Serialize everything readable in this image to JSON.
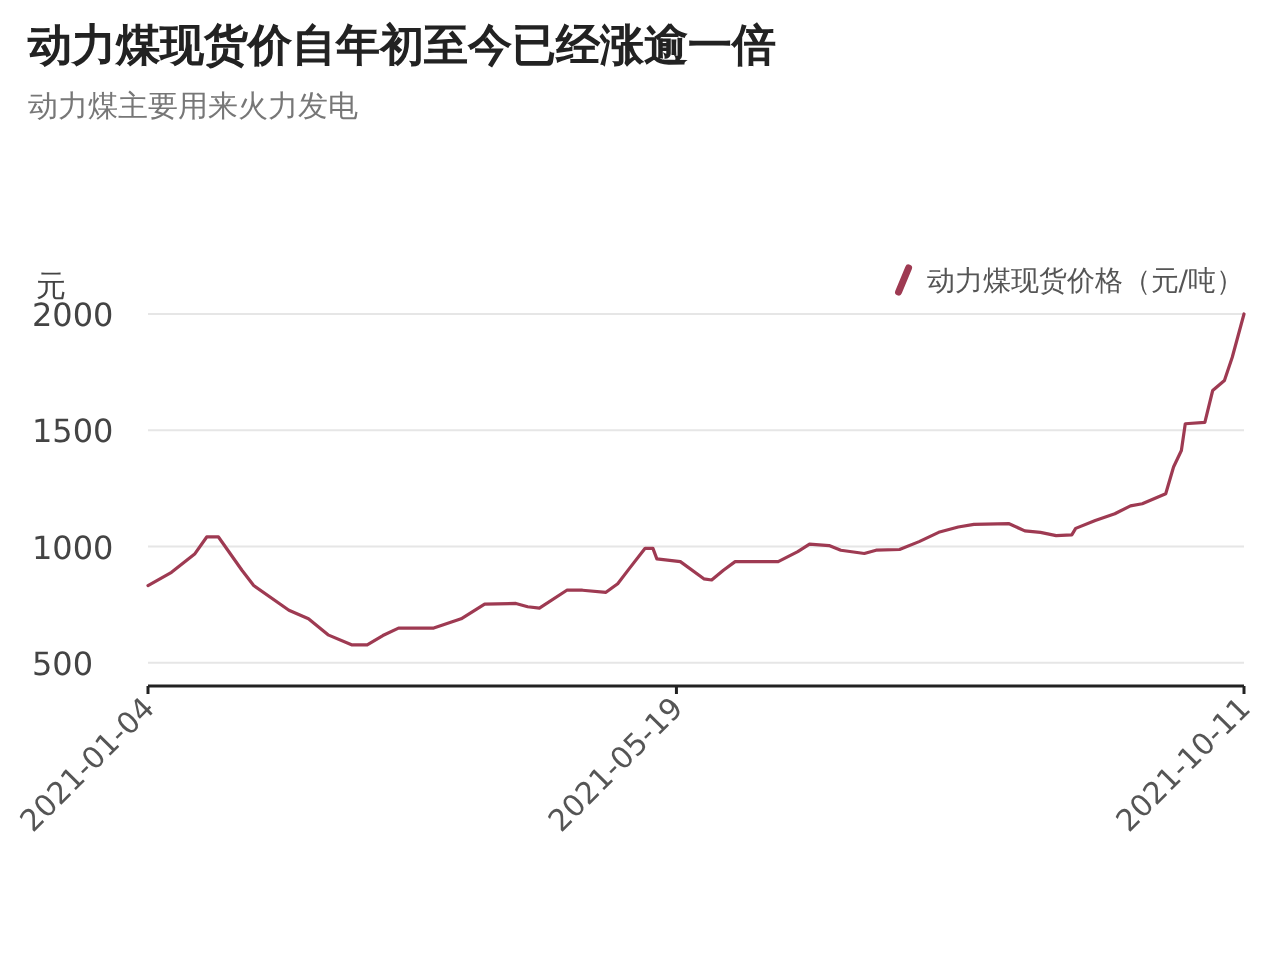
{
  "chart_data": {
    "type": "line",
    "title": "动力煤现货价自年初至今已经涨逾一倍",
    "subtitle": "动力煤主要用来火力发电",
    "ylabel": "元",
    "x": [
      "2021-01-04",
      "2021-01-10",
      "2021-01-16",
      "2021-01-19",
      "2021-01-22",
      "2021-01-28",
      "2021-01-31",
      "2021-02-09",
      "2021-02-14",
      "2021-02-19",
      "2021-02-25",
      "2021-03-01",
      "2021-03-05",
      "2021-03-09",
      "2021-03-18",
      "2021-03-25",
      "2021-03-31",
      "2021-04-08",
      "2021-04-11",
      "2021-04-14",
      "2021-04-21",
      "2021-04-25",
      "2021-05-01",
      "2021-05-04",
      "2021-05-07",
      "2021-05-11",
      "2021-05-13",
      "2021-05-14",
      "2021-05-20",
      "2021-05-26",
      "2021-05-28",
      "2021-05-31",
      "2021-06-03",
      "2021-06-14",
      "2021-06-19",
      "2021-06-22",
      "2021-06-27",
      "2021-06-30",
      "2021-07-06",
      "2021-07-09",
      "2021-07-15",
      "2021-07-20",
      "2021-07-25",
      "2021-07-30",
      "2021-08-03",
      "2021-08-12",
      "2021-08-16",
      "2021-08-20",
      "2021-08-24",
      "2021-08-28",
      "2021-08-29",
      "2021-09-03",
      "2021-09-08",
      "2021-09-12",
      "2021-09-15",
      "2021-09-21",
      "2021-09-23",
      "2021-09-25",
      "2021-09-26",
      "2021-10-01",
      "2021-10-03",
      "2021-10-06",
      "2021-10-08",
      "2021-10-11"
    ],
    "series": [
      {
        "name": "动力煤现货价格（元/吨）",
        "color": "#9e3a52",
        "values": [
          832,
          889,
          969,
          1041,
          1041,
          898,
          832,
          726,
          689,
          620,
          577,
          577,
          617,
          649,
          649,
          689,
          752,
          755,
          741,
          735,
          812,
          812,
          803,
          840,
          906,
          992,
          992,
          947,
          935,
          861,
          856,
          898,
          935,
          935,
          978,
          1010,
          1004,
          984,
          970,
          984,
          987,
          1021,
          1061,
          1084,
          1095,
          1098,
          1067,
          1061,
          1047,
          1050,
          1078,
          1112,
          1141,
          1175,
          1184,
          1227,
          1342,
          1413,
          1528,
          1534,
          1671,
          1714,
          1814,
          2000
        ]
      }
    ],
    "xlim": [
      "2021-01-04",
      "2021-10-11"
    ],
    "xticks": [
      "2021-01-04",
      "2021-05-19",
      "2021-10-11"
    ],
    "ylim": [
      400,
      2000
    ],
    "yticks": [
      500,
      1000,
      1500,
      2000
    ],
    "grid": "y",
    "legend": "top right"
  }
}
